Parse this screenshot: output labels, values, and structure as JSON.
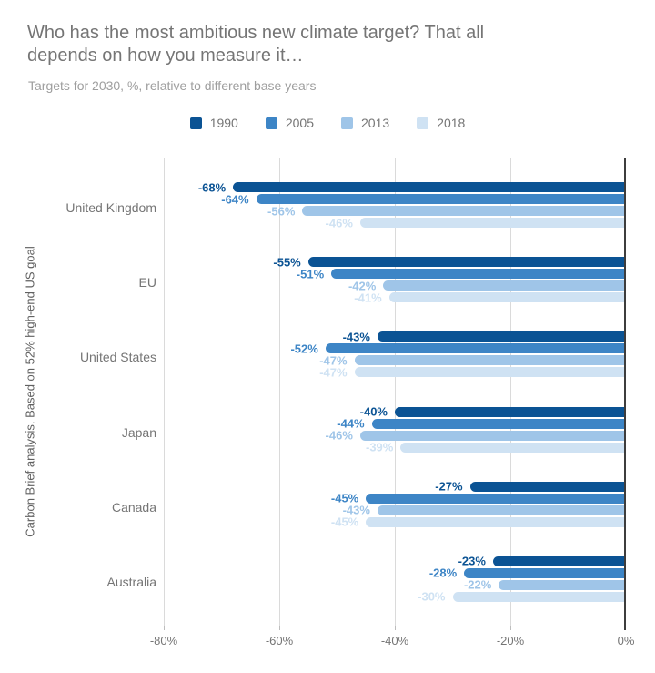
{
  "title_lines": [
    "Who has the most ambitious new climate target? That all",
    "depends on how you measure it…"
  ],
  "subtitle": "Targets for 2030, %, relative to different base years",
  "y_axis_title": "Carbon Brief analysis. Based on 52% high-end US goal",
  "chart_data": {
    "type": "bar",
    "orientation": "horizontal",
    "title": "Who has the most ambitious new climate target? That all depends on how you measure it…",
    "subtitle": "Targets for 2030, %, relative to different base years",
    "ylabel": "Carbon Brief analysis. Based on 52% high-end US goal",
    "xlabel": "",
    "categories": [
      "United Kingdom",
      "EU",
      "United States",
      "Japan",
      "Canada",
      "Australia"
    ],
    "series": [
      {
        "name": "1990",
        "color": "#0b5394",
        "values": [
          -68,
          -55,
          -43,
          -40,
          -27,
          -23
        ]
      },
      {
        "name": "2005",
        "color": "#3d85c6",
        "values": [
          -64,
          -51,
          -52,
          -44,
          -45,
          -28
        ]
      },
      {
        "name": "2013",
        "color": "#9fc5e8",
        "values": [
          -56,
          -42,
          -47,
          -46,
          -43,
          -22
        ]
      },
      {
        "name": "2018",
        "color": "#cfe2f3",
        "values": [
          -46,
          -41,
          -47,
          -39,
          -45,
          -30
        ]
      }
    ],
    "value_label_suffix": "%",
    "xlim": [
      -80,
      0
    ],
    "x_ticks": [
      "-80%",
      "-60%",
      "-40%",
      "-20%",
      "0%"
    ],
    "x_tick_values": [
      -80,
      -60,
      -40,
      -20,
      0
    ],
    "grid": "vertical",
    "legend_position": "top"
  },
  "colors": {
    "grid": "#dadada",
    "zero_line": "#3d3d3d",
    "title": "#757575",
    "subtitle": "#9e9e9e",
    "axis_text": "#757575",
    "y_title_text": "#616161"
  }
}
